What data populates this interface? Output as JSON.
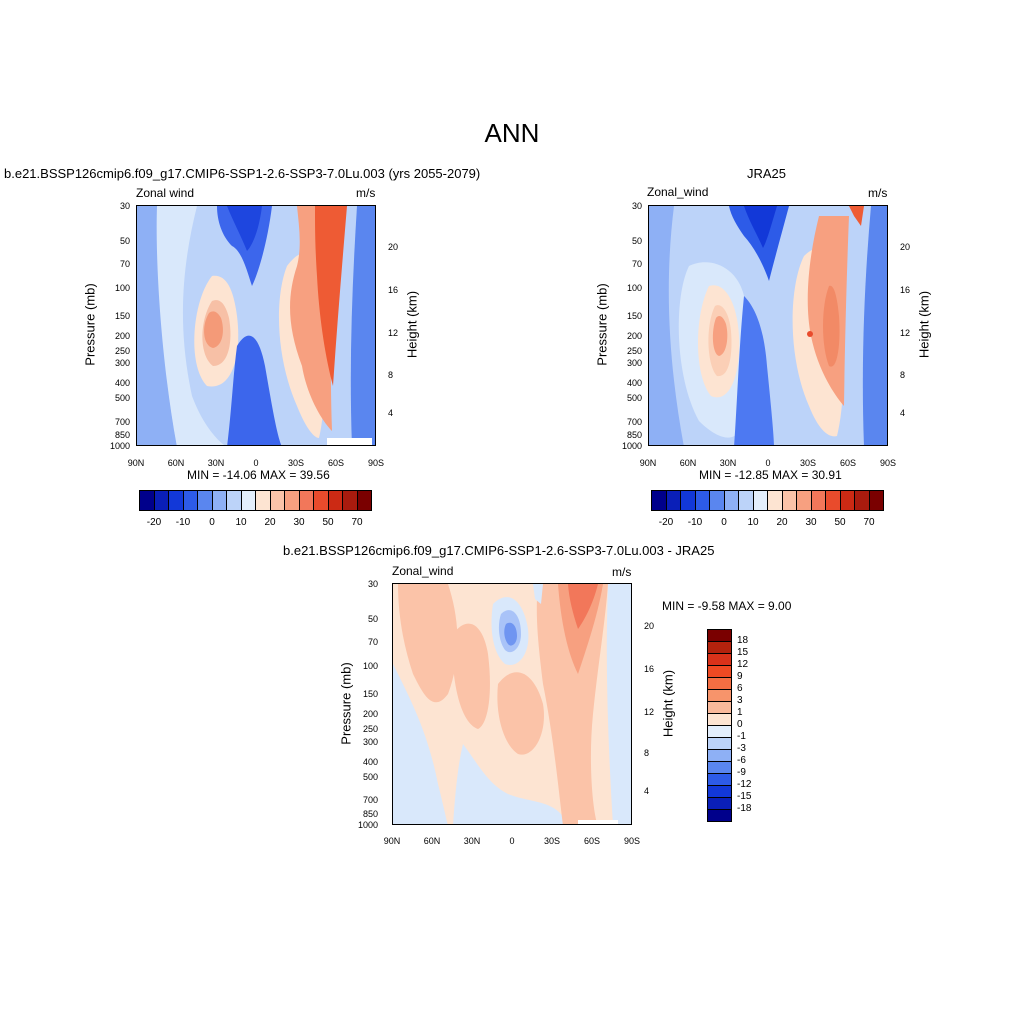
{
  "main_title": "ANN",
  "colors": {
    "negative_strong": "#0b2fd6",
    "negative_mid": "#4d79f2",
    "negative_light": "#a9c3f8",
    "neutral_light": "#d9e8fb",
    "positive_light": "#fde4d2",
    "positive_mid": "#f7a98a",
    "positive_strong": "#ee5b34",
    "positive_max": "#8b0000"
  },
  "panels": [
    {
      "title": "b.e21.BSSP126cmip6.f09_g17.CMIP6-SSP1-2.6-SSP3-7.0Lu.003 (yrs 2055-2079)",
      "variable_label": "Zonal wind",
      "units": "m/s",
      "stats": "MIN = -14.06  MAX =  39.56"
    },
    {
      "title": "JRA25",
      "variable_label": "Zonal_wind",
      "units": "m/s",
      "stats": "MIN = -12.85  MAX =  30.91"
    },
    {
      "title": "b.e21.BSSP126cmip6.f09_g17.CMIP6-SSP1-2.6-SSP3-7.0Lu.003 - JRA25",
      "variable_label": "Zonal_wind",
      "units": "m/s",
      "stats": "MIN =  -9.58  MAX =   9.00"
    }
  ],
  "axes": {
    "x_ticks": [
      "90N",
      "60N",
      "30N",
      "0",
      "30S",
      "60S",
      "90S"
    ],
    "pressure_ticks": [
      "30",
      "50",
      "70",
      "100",
      "150",
      "200",
      "250",
      "300",
      "400",
      "500",
      "700",
      "850",
      "1000"
    ],
    "height_ticks": [
      "20",
      "16",
      "12",
      "8",
      "4"
    ],
    "pressure_label": "Pressure (mb)",
    "height_label": "Height (km)"
  },
  "colorbar_main": {
    "labels": [
      "-20",
      "-10",
      "0",
      "10",
      "20",
      "30",
      "50",
      "70"
    ],
    "colors": [
      "#00008b",
      "#0a1fb8",
      "#1238d8",
      "#2d5be8",
      "#5a86ef",
      "#8eb0f5",
      "#bcd3f9",
      "#e3eefc",
      "#fde4d2",
      "#fbc3a8",
      "#f7a080",
      "#f2775a",
      "#e94b2c",
      "#cc2a14",
      "#a91b0e",
      "#7a0000"
    ]
  },
  "colorbar_diff": {
    "labels": [
      "18",
      "15",
      "12",
      "9",
      "6",
      "3",
      "1",
      "0",
      "-1",
      "-3",
      "-6",
      "-9",
      "-12",
      "-15",
      "-18"
    ],
    "colors": [
      "#7a0000",
      "#b3220d",
      "#d9321a",
      "#ee4a23",
      "#f46e43",
      "#f7946b",
      "#fab99b",
      "#fde4d2",
      "#e3eefc",
      "#bcd3f9",
      "#8eb0f5",
      "#5a86ef",
      "#2d5be8",
      "#1238d8",
      "#0a1fb8",
      "#00008b"
    ]
  },
  "chart_data": [
    {
      "type": "heatmap",
      "title": "b.e21.BSSP126cmip6.f09_g17.CMIP6-SSP1-2.6-SSP3-7.0Lu.003 (yrs 2055-2079)",
      "variable": "Zonal wind",
      "units": "m/s",
      "xlabel": "",
      "ylabel": "Pressure (mb)",
      "y2label": "Height (km)",
      "x_ticks": [
        "90N",
        "60N",
        "30N",
        "0",
        "30S",
        "60S",
        "90S"
      ],
      "y_ticks_mb": [
        30,
        50,
        70,
        100,
        150,
        200,
        250,
        300,
        400,
        500,
        700,
        850,
        1000
      ],
      "y_scale": "log",
      "min": -14.06,
      "max": 39.56,
      "contour_levels": [
        -20,
        -10,
        0,
        10,
        20,
        30,
        50,
        70
      ]
    },
    {
      "type": "heatmap",
      "title": "JRA25",
      "variable": "Zonal_wind",
      "units": "m/s",
      "ylabel": "Pressure (mb)",
      "y2label": "Height (km)",
      "x_ticks": [
        "90N",
        "60N",
        "30N",
        "0",
        "30S",
        "60S",
        "90S"
      ],
      "y_ticks_mb": [
        30,
        50,
        70,
        100,
        150,
        200,
        250,
        300,
        400,
        500,
        700,
        850,
        1000
      ],
      "y_scale": "log",
      "min": -12.85,
      "max": 30.91,
      "contour_levels": [
        -20,
        -10,
        0,
        10,
        20,
        30,
        50,
        70
      ]
    },
    {
      "type": "heatmap",
      "title": "b.e21.BSSP126cmip6.f09_g17.CMIP6-SSP1-2.6-SSP3-7.0Lu.003 - JRA25",
      "variable": "Zonal_wind",
      "units": "m/s",
      "ylabel": "Pressure (mb)",
      "y2label": "Height (km)",
      "x_ticks": [
        "90N",
        "60N",
        "30N",
        "0",
        "30S",
        "60S",
        "90S"
      ],
      "y_ticks_mb": [
        30,
        50,
        70,
        100,
        150,
        200,
        250,
        300,
        400,
        500,
        700,
        850,
        1000
      ],
      "y_scale": "log",
      "min": -9.58,
      "max": 9.0,
      "contour_levels": [
        -18,
        -15,
        -12,
        -9,
        -6,
        -3,
        -1,
        0,
        1,
        3,
        6,
        9,
        12,
        15,
        18
      ]
    }
  ]
}
